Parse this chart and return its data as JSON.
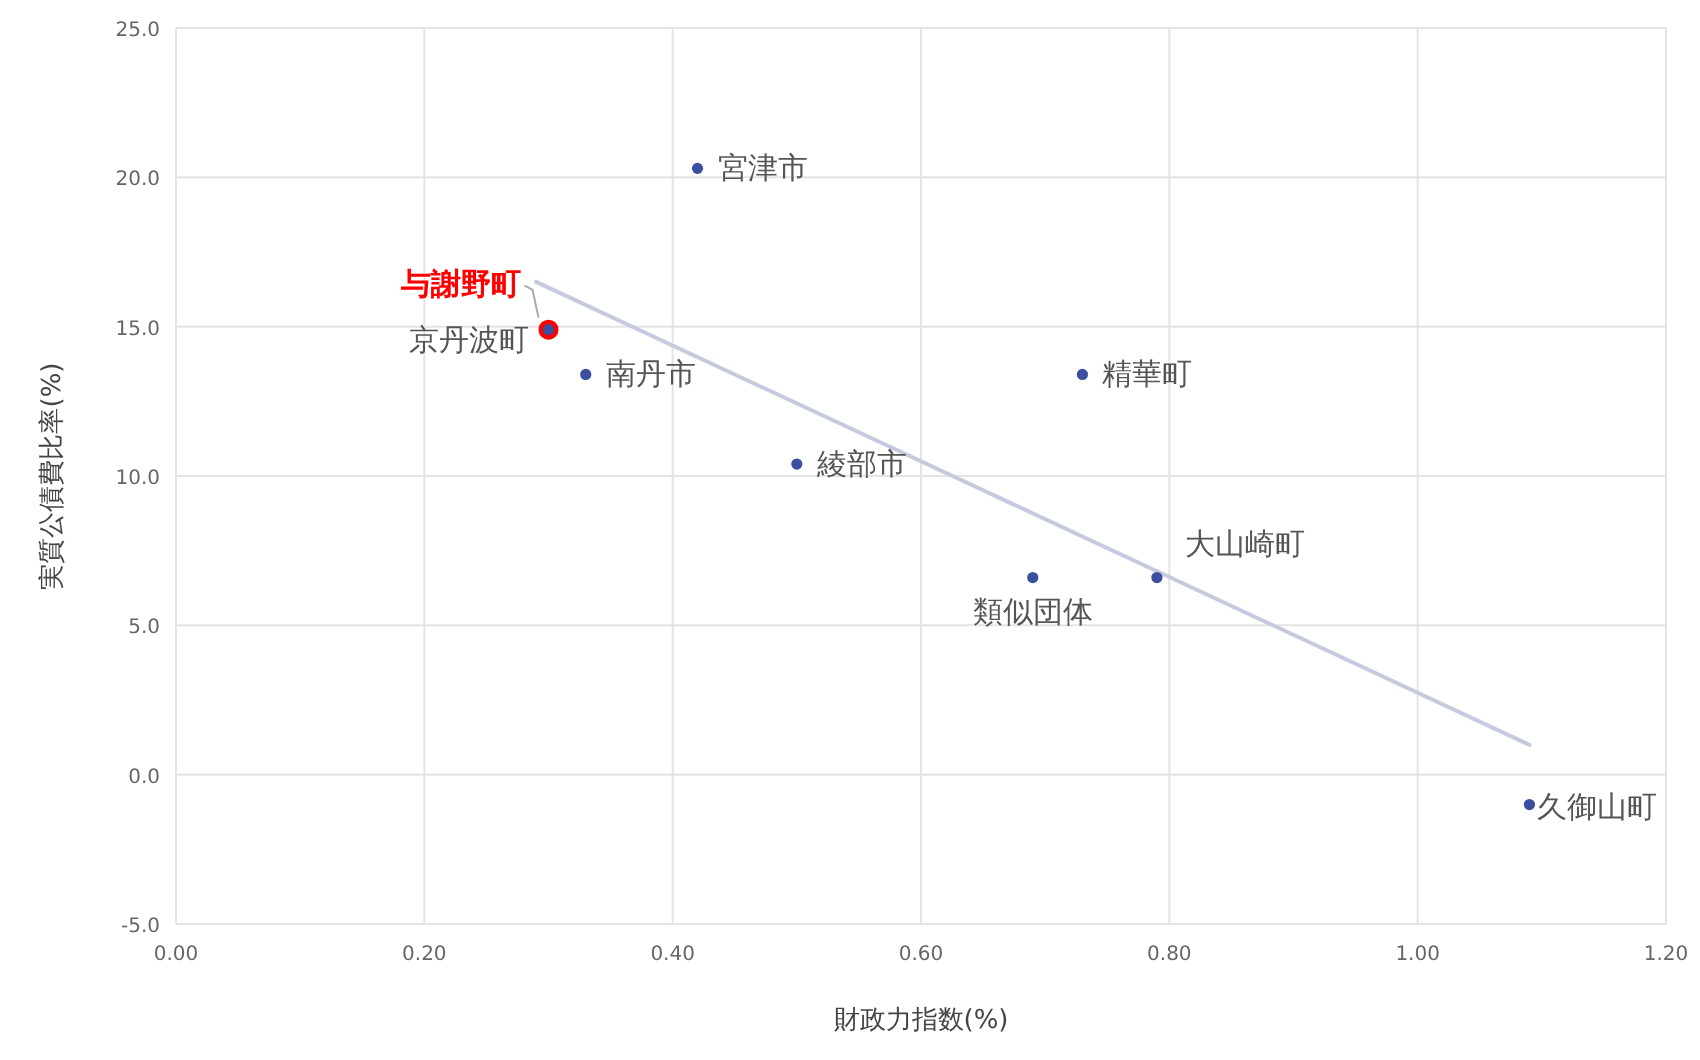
{
  "chart_data": {
    "type": "scatter",
    "xlabel": "財政力指数(%)",
    "ylabel": "実質公債費比率(%)",
    "xlim": [
      0,
      1.2
    ],
    "ylim": [
      -5,
      25
    ],
    "xticks": [
      {
        "value": 0,
        "label": "0.00"
      },
      {
        "value": 0.2,
        "label": "0.20"
      },
      {
        "value": 0.4,
        "label": "0.40"
      },
      {
        "value": 0.6,
        "label": "0.60"
      },
      {
        "value": 0.8,
        "label": "0.80"
      },
      {
        "value": 1.0,
        "label": "1.00"
      },
      {
        "value": 1.2,
        "label": "1.20"
      }
    ],
    "yticks": [
      {
        "value": -5,
        "label": "-5.0"
      },
      {
        "value": 0,
        "label": "0.0"
      },
      {
        "value": 5,
        "label": "5.0"
      },
      {
        "value": 10,
        "label": "10.0"
      },
      {
        "value": 15,
        "label": "15.0"
      },
      {
        "value": 20,
        "label": "20.0"
      },
      {
        "value": 25,
        "label": "25.0"
      }
    ],
    "grid": true,
    "marker": "circle",
    "series": [
      {
        "type": "line",
        "marker": "none",
        "color": "#c5cbdc",
        "x": [
          0.29,
          1.09
        ],
        "values": [
          16.5,
          1.0
        ]
      },
      {
        "name": "与謝野町",
        "type": "scatter",
        "color": "#ff0000",
        "x": [
          0.3
        ],
        "values": [
          14.9
        ]
      },
      {
        "type": "scatter",
        "color": "#3a4fa0",
        "x": [
          0.42,
          0.3,
          0.33,
          0.73,
          0.5,
          0.69,
          0.79,
          1.09
        ],
        "values": [
          20.3,
          14.9,
          13.4,
          13.4,
          10.4,
          6.6,
          6.6,
          -1.0
        ]
      }
    ],
    "annotations": [
      {
        "text": "宮津市",
        "x": 0.42,
        "y": 20.3
      },
      {
        "text": "京丹波町",
        "x": 0.3,
        "y": 14.9
      },
      {
        "text": "南丹市",
        "x": 0.33,
        "y": 13.4
      },
      {
        "text": "精華町",
        "x": 0.73,
        "y": 13.4
      },
      {
        "text": "綾部市",
        "x": 0.5,
        "y": 10.4
      },
      {
        "text": "類似団体",
        "x": 0.69,
        "y": 6.6
      },
      {
        "text": "大山崎町",
        "x": 0.79,
        "y": 6.6
      },
      {
        "text": "久御山町",
        "x": 1.09,
        "y": -1.0
      }
    ]
  }
}
